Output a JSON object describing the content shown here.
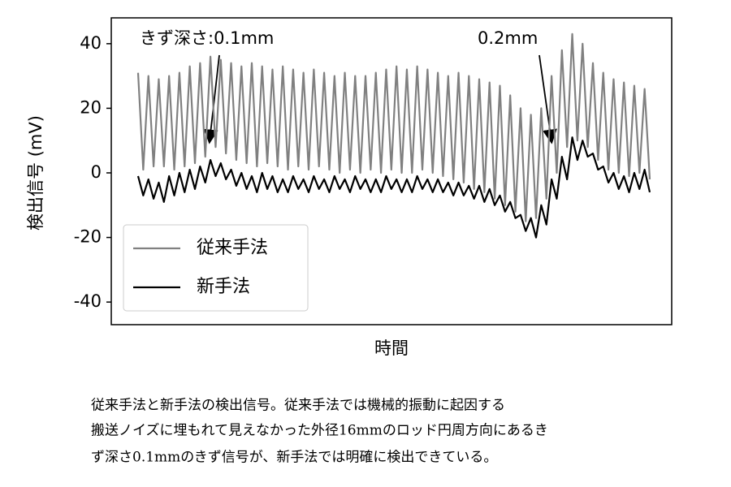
{
  "chart_data": {
    "type": "line",
    "ylabel": "検出信号 (mV)",
    "xlabel": "時間",
    "ylim": [
      -47,
      48
    ],
    "yticks": [
      -40,
      -20,
      0,
      20,
      40
    ],
    "legend": "lower left",
    "annotations": [
      "きず深さ:0.1mm",
      "0.2mm"
    ],
    "series": [
      {
        "name": "従来手法",
        "color": "#808080",
        "values": [
          31,
          1,
          30,
          2,
          29,
          2,
          30,
          1,
          31,
          2,
          33,
          3,
          34,
          5,
          36,
          8,
          35,
          6,
          34,
          4,
          33,
          3,
          34,
          2,
          33,
          3,
          32,
          2,
          33,
          1,
          32,
          2,
          31,
          1,
          32,
          2,
          31,
          1,
          30,
          0,
          31,
          1,
          30,
          0,
          30,
          1,
          31,
          0,
          32,
          1,
          33,
          0,
          32,
          0,
          33,
          1,
          32,
          0,
          31,
          -1,
          30,
          -2,
          31,
          -3,
          30,
          -5,
          29,
          -6,
          28,
          -8,
          27,
          -10,
          24,
          -12,
          20,
          -15,
          18,
          -14,
          20,
          -8,
          30,
          0,
          38,
          8,
          43,
          10,
          40,
          8,
          34,
          4,
          31,
          1,
          29,
          0,
          28,
          -1,
          27,
          0,
          26,
          -2
        ]
      },
      {
        "name": "新手法",
        "color": "#000000",
        "values": [
          -1,
          -7,
          -2,
          -8,
          -3,
          -9,
          -1,
          -7,
          0,
          -6,
          1,
          -5,
          2,
          -3,
          4,
          -1,
          3,
          -2,
          1,
          -4,
          0,
          -5,
          -1,
          -6,
          0,
          -5,
          -1,
          -6,
          -2,
          -6,
          -1,
          -5,
          -2,
          -6,
          -1,
          -5,
          -2,
          -6,
          -1,
          -5,
          -2,
          -6,
          -1,
          -5,
          -2,
          -6,
          -2,
          -6,
          -1,
          -5,
          -2,
          -6,
          -2,
          -6,
          -1,
          -5,
          -2,
          -6,
          -2,
          -6,
          -3,
          -7,
          -3,
          -7,
          -4,
          -8,
          -4,
          -9,
          -5,
          -10,
          -7,
          -12,
          -9,
          -14,
          -13,
          -18,
          -14,
          -20,
          -10,
          -16,
          -2,
          -8,
          5,
          -2,
          11,
          4,
          10,
          5,
          6,
          1,
          2,
          -3,
          0,
          -5,
          -1,
          -6,
          0,
          -5,
          1,
          -6
        ]
      }
    ]
  },
  "caption": [
    "従来手法と新手法の検出信号。従来手法では機械的振動に起因する",
    "搬送ノイズに埋もれて見えなかった外径16mmのロッド円周方向にあるき",
    "ず深さ0.1mmのきず信号が、新手法では明確に検出できている。"
  ]
}
